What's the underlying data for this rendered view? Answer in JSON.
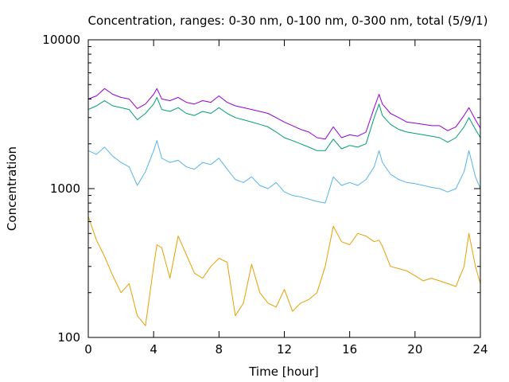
{
  "chart_data": {
    "type": "line",
    "title": "Concentration, ranges: 0-30 nm, 0-100 nm, 0-300 nm, total (5/9/1)",
    "xlabel": "Time [hour]",
    "ylabel": "Concentration",
    "xlim": [
      0,
      24
    ],
    "ylim": [
      100,
      10000
    ],
    "yscale": "log",
    "grid": false,
    "legend": "none",
    "x_ticks": [
      "0",
      "4",
      "8",
      "12",
      "16",
      "20",
      "24"
    ],
    "y_ticks": [
      "100",
      "1000",
      "10000"
    ],
    "x": [
      0,
      0.5,
      1,
      1.5,
      2,
      2.5,
      3,
      3.5,
      4,
      4.2,
      4.5,
      5,
      5.5,
      6,
      6.5,
      7,
      7.5,
      8,
      8.5,
      9,
      9.5,
      10,
      10.5,
      11,
      11.5,
      12,
      12.5,
      13,
      13.5,
      14,
      14.5,
      15,
      15.5,
      16,
      16.5,
      17,
      17.5,
      17.8,
      18,
      18.5,
      19,
      19.5,
      20,
      20.5,
      21,
      21.5,
      22,
      22.5,
      23,
      23.3,
      23.7,
      24
    ],
    "series": [
      {
        "color": "#9400d3",
        "values": [
          4000,
          4200,
          4700,
          4300,
          4100,
          4000,
          3450,
          3700,
          4300,
          4700,
          4000,
          3900,
          4100,
          3800,
          3700,
          3900,
          3800,
          4200,
          3800,
          3600,
          3500,
          3400,
          3300,
          3200,
          3000,
          2800,
          2650,
          2500,
          2400,
          2200,
          2150,
          2600,
          2200,
          2300,
          2250,
          2400,
          3500,
          4300,
          3700,
          3200,
          3000,
          2800,
          2750,
          2700,
          2650,
          2650,
          2450,
          2600,
          3100,
          3500,
          2900,
          2550
        ]
      },
      {
        "color": "#009e73",
        "values": [
          3400,
          3600,
          3900,
          3600,
          3500,
          3400,
          2900,
          3200,
          3700,
          4100,
          3400,
          3300,
          3500,
          3200,
          3100,
          3300,
          3200,
          3500,
          3200,
          3000,
          2900,
          2800,
          2700,
          2600,
          2400,
          2200,
          2100,
          2000,
          1900,
          1800,
          1800,
          2150,
          1850,
          1950,
          1900,
          2000,
          3000,
          3700,
          3100,
          2700,
          2500,
          2400,
          2350,
          2300,
          2250,
          2200,
          2050,
          2200,
          2600,
          3000,
          2500,
          2200
        ]
      },
      {
        "color": "#56b4e9",
        "values": [
          1800,
          1700,
          1900,
          1650,
          1500,
          1400,
          1050,
          1300,
          1800,
          2100,
          1600,
          1500,
          1550,
          1400,
          1350,
          1500,
          1450,
          1600,
          1350,
          1150,
          1100,
          1200,
          1050,
          1000,
          1100,
          950,
          900,
          880,
          850,
          820,
          800,
          1200,
          1050,
          1100,
          1050,
          1150,
          1400,
          1800,
          1500,
          1250,
          1150,
          1100,
          1080,
          1050,
          1020,
          1000,
          950,
          1000,
          1300,
          1800,
          1200,
          1000
        ]
      },
      {
        "color": "#e69f00",
        "values": [
          650,
          450,
          350,
          260,
          200,
          230,
          140,
          120,
          300,
          420,
          400,
          250,
          480,
          360,
          270,
          250,
          300,
          340,
          320,
          140,
          170,
          310,
          200,
          170,
          160,
          210,
          150,
          170,
          180,
          200,
          300,
          560,
          440,
          420,
          500,
          480,
          440,
          450,
          410,
          300,
          290,
          280,
          260,
          240,
          250,
          240,
          230,
          220,
          300,
          500,
          300,
          230
        ]
      }
    ]
  }
}
